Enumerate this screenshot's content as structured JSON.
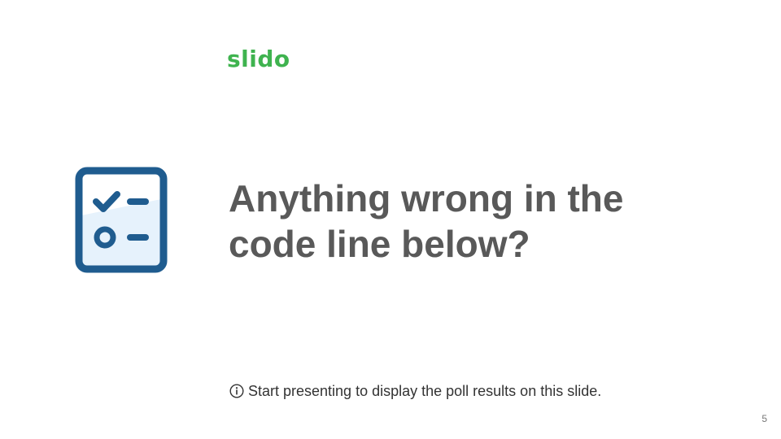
{
  "logo": {
    "text": "slido"
  },
  "question": {
    "line1": "Anything wrong in the",
    "line2": "code line below?"
  },
  "info": {
    "icon": "info-circle-icon",
    "text": "Start presenting to display the poll results on this slide."
  },
  "slide": {
    "number": "5"
  },
  "colors": {
    "brand_green": "#3fb34f",
    "icon_blue": "#1f5c8f",
    "icon_fill": "#e6f2fc",
    "question_gray": "#595959"
  }
}
